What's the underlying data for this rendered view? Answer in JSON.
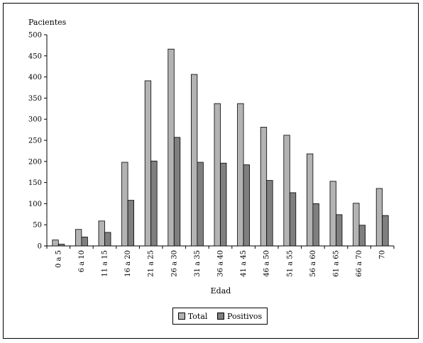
{
  "chart_data": {
    "type": "bar",
    "ylabel": "Pacientes",
    "xlabel": "Edad",
    "ylim": [
      0,
      500
    ],
    "yticks": [
      0,
      50,
      100,
      150,
      200,
      250,
      300,
      350,
      400,
      450,
      500
    ],
    "categories": [
      "0 a 5",
      "6 a 10",
      "11 a 15",
      "16 a 20",
      "21 a 25",
      "26 a 30",
      "31 a 35",
      "36 a 40",
      "41 a 45",
      "46 a 50",
      "51 a 55",
      "56 a 60",
      "61 a 65",
      "66 a 70",
      "70"
    ],
    "series": [
      {
        "name": "Total",
        "color": "#b3b3b3",
        "values": [
          14,
          39,
          59,
          198,
          391,
          466,
          406,
          337,
          337,
          281,
          262,
          218,
          153,
          101,
          136
        ]
      },
      {
        "name": "Positivos",
        "color": "#7f7f7f",
        "values": [
          4,
          21,
          32,
          108,
          201,
          257,
          198,
          196,
          192,
          155,
          126,
          100,
          74,
          49,
          72
        ]
      }
    ],
    "grid": false,
    "legend": "bottom-center"
  }
}
